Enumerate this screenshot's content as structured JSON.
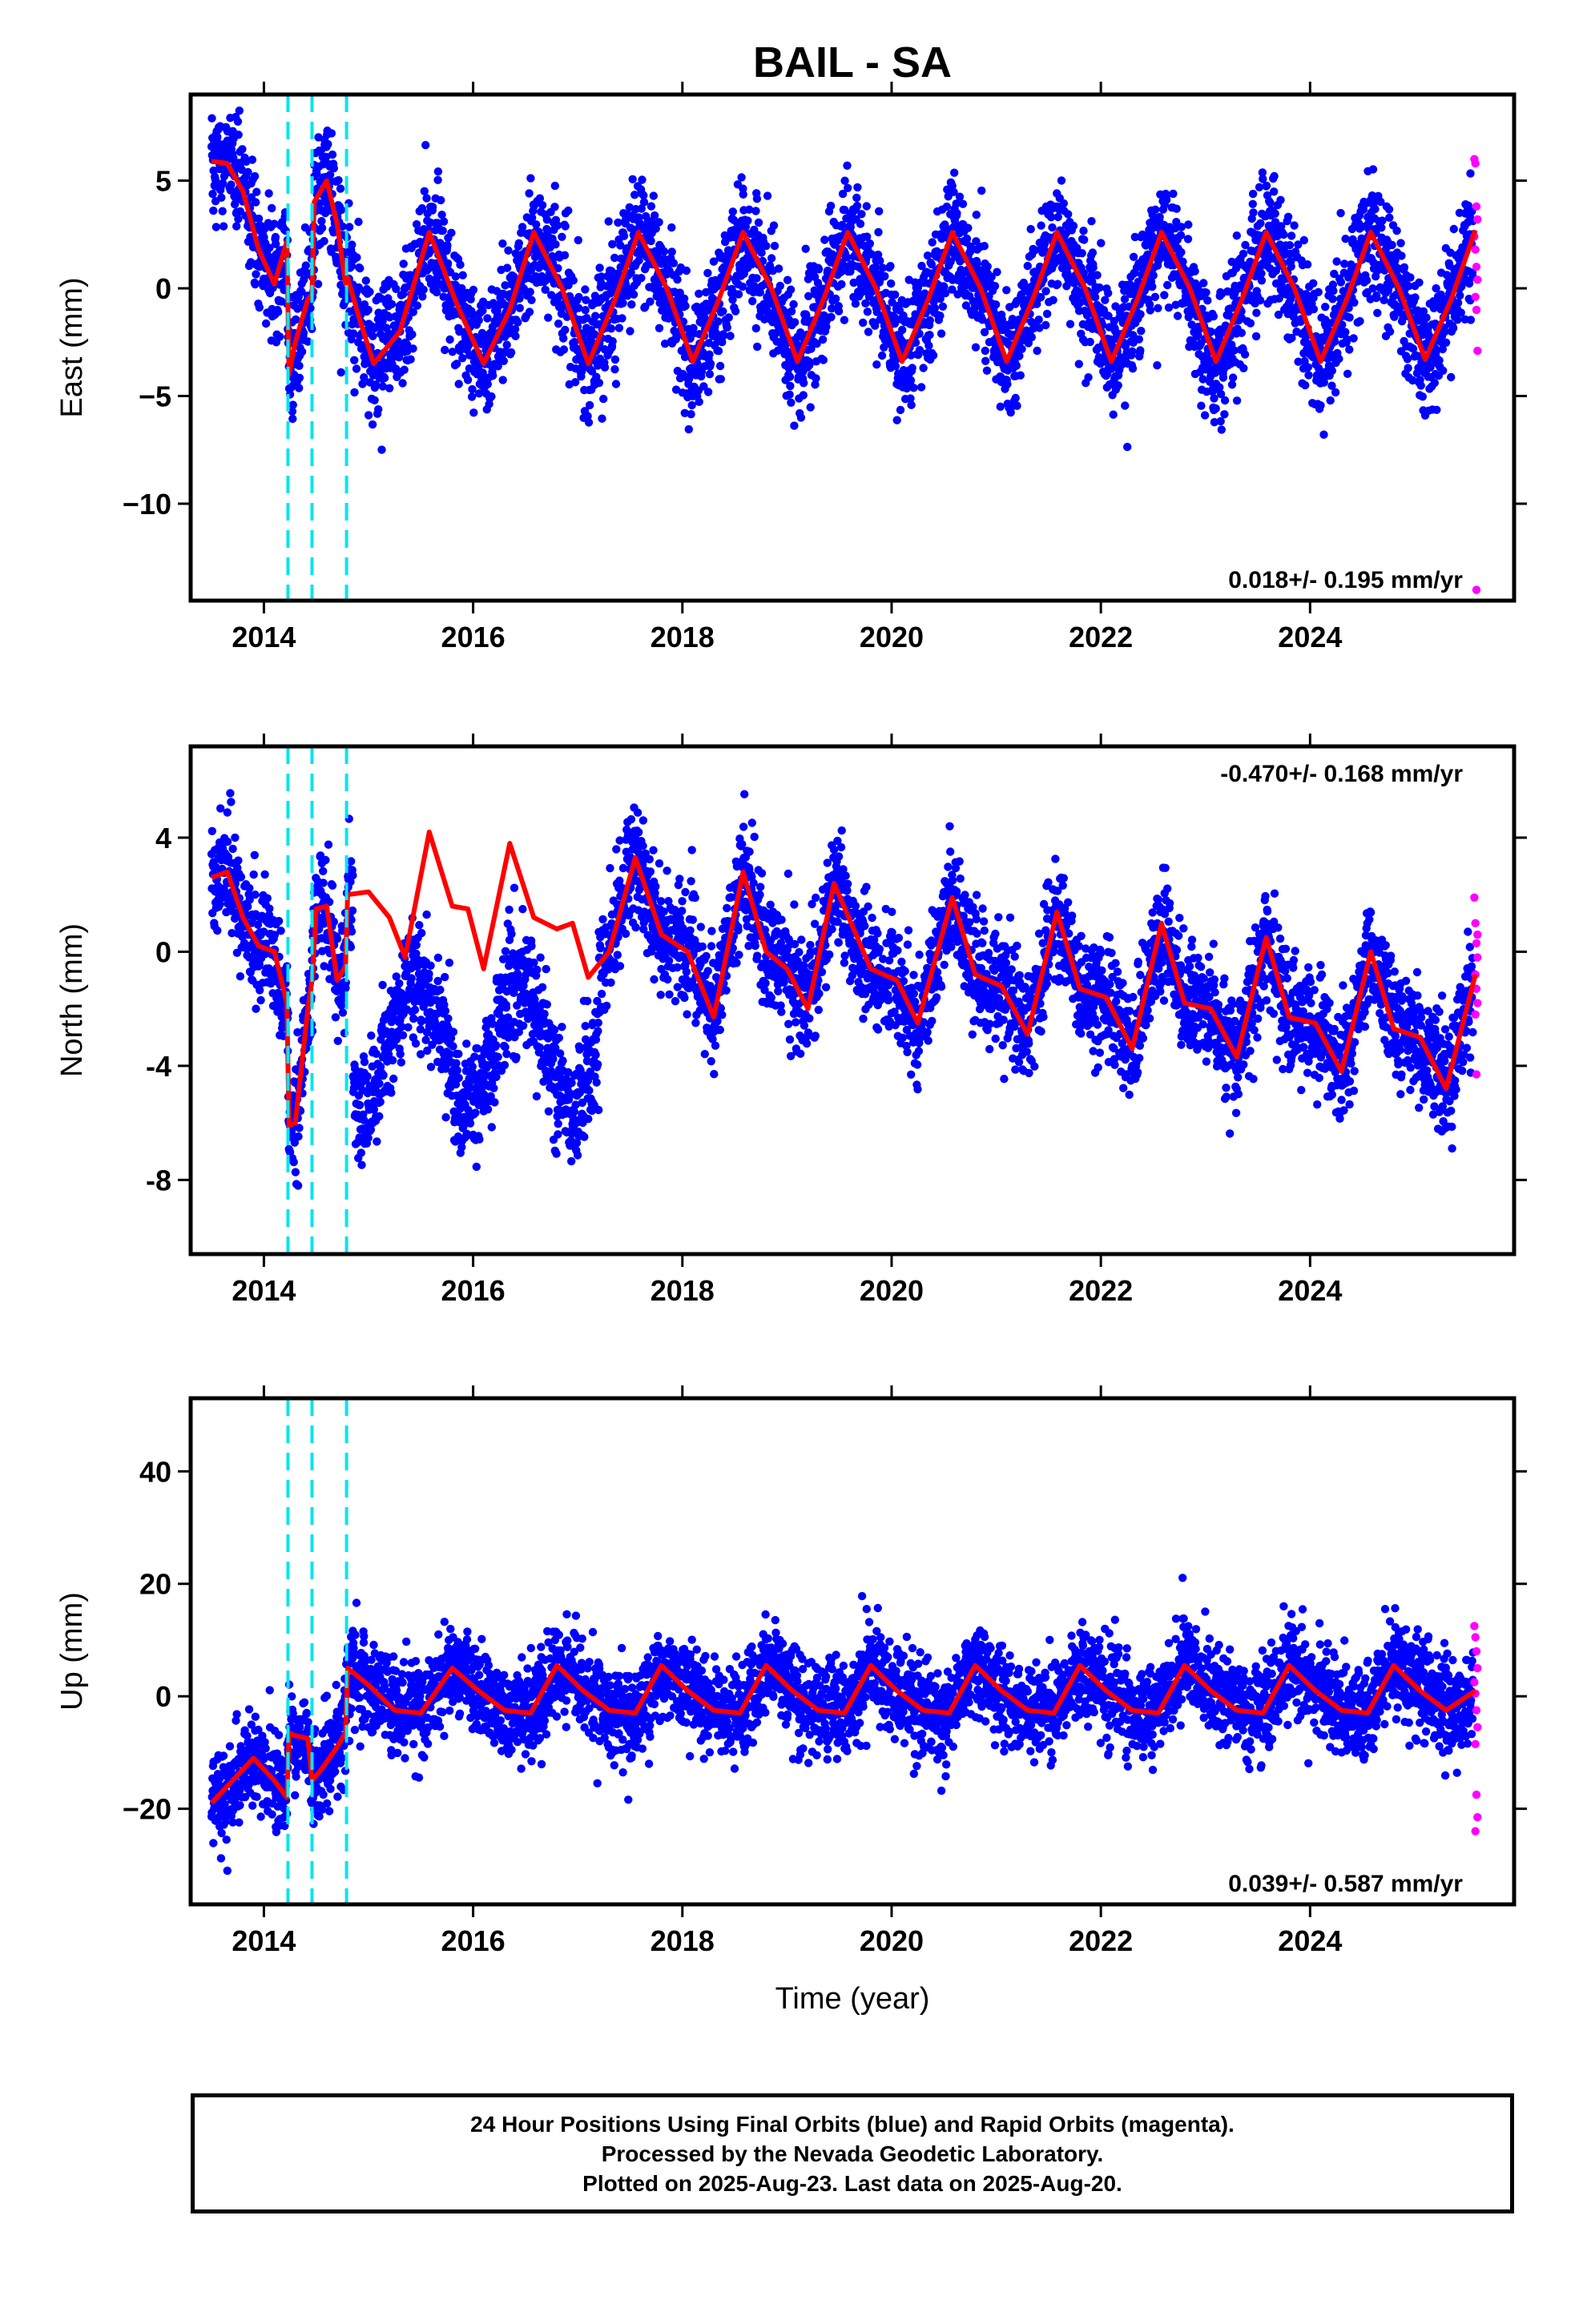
{
  "title": "BAIL - SA",
  "xlabel": "Time (year)",
  "footer": {
    "line1": "24 Hour Positions Using Final Orbits (blue) and Rapid Orbits (magenta).",
    "line2": "Processed by the Nevada Geodetic Laboratory.",
    "line3": "Plotted on 2025-Aug-23. Last data on 2025-Aug-20."
  },
  "colors": {
    "final_orbit_points": "#0000ff",
    "rapid_orbit_points": "#ff00ff",
    "model_curve": "#ff0000",
    "equipment_change_lines": "#00e5ee"
  },
  "chart_data": [
    {
      "type": "scatter",
      "component": "east",
      "ylabel": "East (mm)",
      "rate_text": "0.018+/- 0.195 mm/yr",
      "rate_position": "bottom-right",
      "xlim": [
        2013.3,
        2025.95
      ],
      "ylim": [
        -14.5,
        9
      ],
      "xticks": [
        2014,
        2016,
        2018,
        2020,
        2022,
        2024
      ],
      "yticks": [
        5,
        0,
        -5,
        -10
      ],
      "ytick_labels": [
        "5",
        "0",
        "−5",
        "−10"
      ],
      "offset_lines_x": [
        2014.23,
        2014.46,
        2014.79
      ],
      "model": {
        "x": [
          2013.5,
          2013.65,
          2013.8,
          2013.95,
          2014.1,
          2014.22,
          2014.24,
          2014.3,
          2014.42,
          2014.46,
          2014.48,
          2014.6,
          2014.7,
          2014.78,
          2014.8,
          2014.9,
          2015.05,
          2015.3,
          2015.58,
          2015.85,
          2016.1,
          2016.35,
          2016.58,
          2016.85,
          2017.1,
          2017.35,
          2017.58,
          2017.85,
          2018.1,
          2018.35,
          2018.58,
          2018.85,
          2019.1,
          2019.35,
          2019.58,
          2019.85,
          2020.1,
          2020.35,
          2020.58,
          2020.85,
          2021.1,
          2021.35,
          2021.58,
          2021.85,
          2022.1,
          2022.35,
          2022.58,
          2022.85,
          2023.1,
          2023.35,
          2023.58,
          2023.85,
          2024.1,
          2024.35,
          2024.58,
          2024.85,
          2025.1,
          2025.35,
          2025.58
        ],
        "y": [
          5.9,
          5.8,
          4.5,
          1.8,
          0.2,
          2.2,
          -4.0,
          -2.5,
          -0.5,
          -0.3,
          4.0,
          5.0,
          3.0,
          0.2,
          0.5,
          -1.2,
          -3.5,
          -2.0,
          2.6,
          -0.8,
          -3.5,
          -1.0,
          2.6,
          0.0,
          -3.5,
          -0.6,
          2.6,
          0.0,
          -3.4,
          -0.5,
          2.6,
          0.0,
          -3.4,
          -0.5,
          2.6,
          0.0,
          -3.4,
          -0.5,
          2.6,
          0.0,
          -3.4,
          -0.5,
          2.6,
          0.0,
          -3.4,
          -0.5,
          2.6,
          0.0,
          -3.4,
          -0.5,
          2.6,
          0.0,
          -3.4,
          -0.5,
          2.6,
          0.0,
          -3.3,
          -0.5,
          2.7
        ]
      },
      "rapid_points": {
        "x": [
          2025.57,
          2025.58,
          2025.59,
          2025.6,
          2025.57,
          2025.58,
          2025.59,
          2025.6,
          2025.58,
          2025.59,
          2025.6,
          2025.59
        ],
        "y": [
          6.0,
          5.8,
          3.8,
          3.2,
          2.4,
          1.8,
          1.0,
          0.4,
          -0.4,
          -1.0,
          -2.9,
          -14.0
        ]
      }
    },
    {
      "type": "scatter",
      "component": "north",
      "ylabel": "North (mm)",
      "rate_text": "-0.470+/- 0.168 mm/yr",
      "rate_position": "top-right",
      "xlim": [
        2013.3,
        2025.95
      ],
      "ylim": [
        -10.6,
        7.2
      ],
      "xticks": [
        2014,
        2016,
        2018,
        2020,
        2022,
        2024
      ],
      "yticks": [
        4,
        0,
        -4,
        -8
      ],
      "ytick_labels": [
        "4",
        "0",
        "-4",
        "-8"
      ],
      "offset_lines_x": [
        2014.23,
        2014.46,
        2014.79
      ],
      "model": {
        "x": [
          2013.5,
          2013.65,
          2013.8,
          2013.95,
          2014.1,
          2014.22,
          2014.24,
          2014.3,
          2014.42,
          2014.46,
          2014.5,
          2014.6,
          2014.7,
          2014.78,
          2014.8,
          2015.0,
          2015.2,
          2015.35,
          2015.58,
          2015.8,
          2015.95,
          2016.1,
          2016.35,
          2016.58,
          2016.8,
          2016.95,
          2017.1,
          2017.3,
          2017.55,
          2017.8,
          2018.05,
          2018.3,
          2018.58,
          2018.8,
          2019.0,
          2019.2,
          2019.45,
          2019.8,
          2020.05,
          2020.25,
          2020.58,
          2020.8,
          2021.05,
          2021.3,
          2021.58,
          2021.8,
          2022.05,
          2022.3,
          2022.58,
          2022.8,
          2023.05,
          2023.3,
          2023.58,
          2023.8,
          2024.05,
          2024.3,
          2024.58,
          2024.8,
          2025.05,
          2025.3,
          2025.58
        ],
        "y": [
          2.6,
          2.8,
          1.2,
          0.2,
          0.0,
          -1.8,
          -6.1,
          -6.0,
          -2.0,
          -1.0,
          1.5,
          1.6,
          -1.0,
          -0.5,
          2.0,
          2.1,
          1.2,
          -0.2,
          4.2,
          1.6,
          1.5,
          -0.6,
          3.8,
          1.2,
          0.8,
          1.0,
          -0.9,
          0.0,
          3.3,
          0.6,
          0.0,
          -2.3,
          2.8,
          0.0,
          -0.6,
          -2.0,
          2.4,
          -0.6,
          -1.0,
          -2.5,
          1.9,
          -0.8,
          -1.2,
          -2.9,
          1.4,
          -1.3,
          -1.6,
          -3.4,
          1.0,
          -1.8,
          -2.0,
          -3.7,
          0.5,
          -2.3,
          -2.5,
          -4.2,
          0.0,
          -2.7,
          -3.0,
          -4.8,
          -0.8
        ]
      },
      "rapid_points": {
        "x": [
          2025.57,
          2025.58,
          2025.59,
          2025.6,
          2025.58,
          2025.59,
          2025.6,
          2025.58,
          2025.59,
          2025.6
        ],
        "y": [
          1.9,
          1.0,
          0.3,
          -0.2,
          -0.8,
          -1.3,
          -1.8,
          -2.2,
          -4.3,
          0.6
        ]
      }
    },
    {
      "type": "scatter",
      "component": "up",
      "ylabel": "Up (mm)",
      "rate_text": "0.039+/- 0.587 mm/yr",
      "rate_position": "bottom-right",
      "xlim": [
        2013.3,
        2025.95
      ],
      "ylim": [
        -37,
        53
      ],
      "xticks": [
        2014,
        2016,
        2018,
        2020,
        2022,
        2024
      ],
      "yticks": [
        40,
        20,
        0,
        -20
      ],
      "ytick_labels": [
        "40",
        "20",
        "0",
        "−20"
      ],
      "offset_lines_x": [
        2014.23,
        2014.46,
        2014.79
      ],
      "model": {
        "x": [
          2013.5,
          2013.7,
          2013.9,
          2014.1,
          2014.22,
          2014.24,
          2014.3,
          2014.42,
          2014.46,
          2014.55,
          2014.7,
          2014.78,
          2014.8,
          2015.0,
          2015.25,
          2015.5,
          2015.8,
          2016.05,
          2016.3,
          2016.55,
          2016.8,
          2017.05,
          2017.3,
          2017.55,
          2017.8,
          2018.05,
          2018.3,
          2018.55,
          2018.8,
          2019.05,
          2019.3,
          2019.55,
          2019.8,
          2020.05,
          2020.3,
          2020.55,
          2020.8,
          2021.05,
          2021.3,
          2021.55,
          2021.8,
          2022.05,
          2022.3,
          2022.55,
          2022.8,
          2023.05,
          2023.3,
          2023.55,
          2023.8,
          2024.05,
          2024.3,
          2024.55,
          2024.8,
          2025.05,
          2025.3,
          2025.58
        ],
        "y": [
          -19,
          -15,
          -11,
          -15,
          -18,
          -6.5,
          -7,
          -7.5,
          -15,
          -13,
          -9,
          -6.5,
          5,
          2,
          -2.5,
          -3,
          5,
          1,
          -2.5,
          -3,
          5.5,
          1,
          -2.5,
          -3,
          5.5,
          1,
          -2.5,
          -3,
          5.5,
          1,
          -2.5,
          -3,
          5.5,
          1,
          -2.5,
          -3,
          5.5,
          1,
          -2.5,
          -3,
          5.5,
          1,
          -2.5,
          -3,
          5.5,
          1,
          -2.5,
          -3,
          5.5,
          1,
          -2.5,
          -3,
          5.5,
          1,
          -2.5,
          1
        ]
      },
      "rapid_points": {
        "x": [
          2025.57,
          2025.58,
          2025.59,
          2025.6,
          2025.57,
          2025.58,
          2025.59,
          2025.6,
          2025.58,
          2025.59,
          2025.6,
          2025.58
        ],
        "y": [
          12.5,
          10.5,
          8.0,
          5.0,
          2.5,
          0.5,
          -2.5,
          -5.5,
          -8.5,
          -17.5,
          -21.5,
          -24.0
        ]
      }
    }
  ]
}
